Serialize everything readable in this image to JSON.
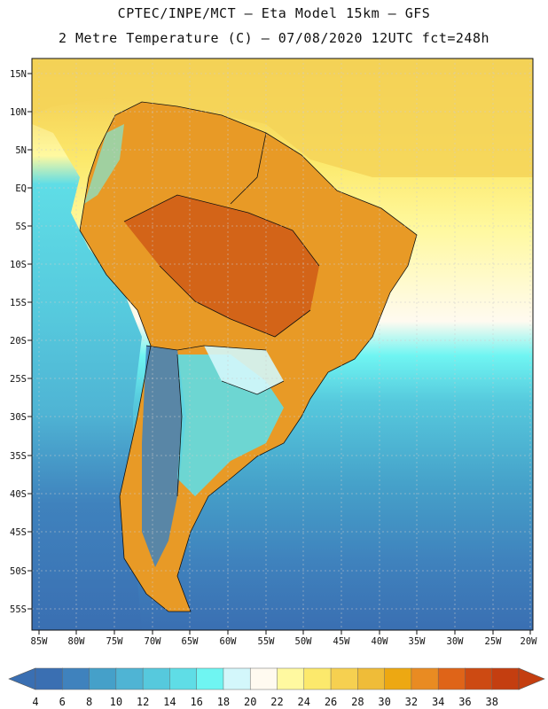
{
  "header": {
    "line1": "CPTEC/INPE/MCT –  Eta Model 15km – GFS",
    "line2": "2 Metre Temperature (C) – 07/08/2020 12UTC fct=248h"
  },
  "axes": {
    "lat_labels": [
      "15N",
      "10N",
      "5N",
      "EQ",
      "5S",
      "10S",
      "15S",
      "20S",
      "25S",
      "30S",
      "35S",
      "40S",
      "45S",
      "50S",
      "55S"
    ],
    "lon_labels": [
      "85W",
      "80W",
      "75W",
      "70W",
      "65W",
      "60W",
      "55W",
      "50W",
      "45W",
      "40W",
      "35W",
      "30W",
      "25W",
      "20W"
    ]
  },
  "colorbar": {
    "labels": [
      "4",
      "6",
      "8",
      "10",
      "12",
      "14",
      "16",
      "18",
      "20",
      "22",
      "24",
      "26",
      "28",
      "30",
      "32",
      "34",
      "36",
      "38"
    ],
    "colors": [
      "#3a6fb2",
      "#3f82bd",
      "#45a0c9",
      "#4fb4d4",
      "#56c9dd",
      "#5fdde6",
      "#6ff5f2",
      "#d3f7fb",
      "#fffaf0",
      "#fff9a0",
      "#fce96c",
      "#f6d050",
      "#efbc38",
      "#eda812",
      "#e98b22",
      "#df6418",
      "#cd4a12",
      "#c43e10"
    ],
    "low_color": "#3a6fb2",
    "high_color": "#c43e10"
  }
}
